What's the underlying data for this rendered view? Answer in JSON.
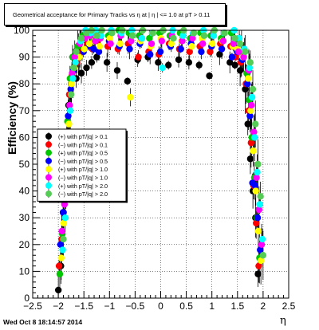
{
  "timestamp": "Wed Oct  8 18:14:57 2014",
  "chart_data": {
    "type": "scatter",
    "title": "Geometrical acceptance for Primary Tracks vs   η at | η | <= 1.0 at pT > 0.11",
    "xlabel": "η",
    "ylabel": "Efficiency (%)",
    "xlim": [
      -2.5,
      2.5
    ],
    "ylim": [
      0,
      100
    ],
    "xticks": [
      -2.5,
      -2,
      -1.5,
      -1,
      -0.5,
      0,
      0.5,
      1,
      1.5,
      2,
      2.5
    ],
    "xtick_labels": [
      "−2.5",
      "−2",
      "−1.5",
      "−1",
      "−0.5",
      "0",
      "0.5",
      "1",
      "1.5",
      "2",
      "2.5"
    ],
    "yticks": [
      0,
      10,
      20,
      30,
      40,
      50,
      60,
      70,
      80,
      90,
      100
    ],
    "ytick_labels": [
      "0",
      "10",
      "20",
      "30",
      "40",
      "50",
      "60",
      "70",
      "80",
      "90",
      "100"
    ],
    "grid": true,
    "legend_position": "middle-left",
    "series": [
      {
        "name": "(+) with pT/|q| > 0.1",
        "color": "#000000",
        "marker": "circle",
        "x": [
          -1.95,
          -1.9,
          -1.85,
          -1.8,
          -1.75,
          -1.7,
          -1.6,
          -1.5,
          -1.4,
          -1.3,
          -1.2,
          -1.0,
          -0.8,
          -0.6,
          -0.4,
          -0.2,
          0.0,
          0.2,
          0.4,
          0.6,
          0.8,
          1.0,
          1.2,
          1.4,
          1.5,
          1.6,
          1.7,
          1.75,
          1.8,
          1.85,
          1.9,
          1.95
        ],
        "y": [
          3,
          12,
          32,
          55,
          72,
          80,
          82,
          84,
          86,
          88,
          90,
          88,
          85,
          81,
          89,
          90,
          88,
          87,
          89,
          88,
          87,
          83,
          91,
          88,
          87,
          85,
          78,
          65,
          52,
          40,
          30,
          9
        ]
      },
      {
        "name": "(−) with pT/|q| > 0.1",
        "color": "#ff0000",
        "marker": "circle",
        "x": [
          -1.95,
          -1.9,
          -1.85,
          -1.8,
          -1.75,
          -1.7,
          -1.6,
          -1.5,
          -1.4,
          -1.3,
          -1.2,
          -1.0,
          -0.8,
          -0.6,
          -0.4,
          -0.2,
          0.0,
          0.2,
          0.4,
          0.6,
          0.8,
          1.0,
          1.2,
          1.4,
          1.5,
          1.6,
          1.7,
          1.75,
          1.8,
          1.85,
          1.9,
          1.95
        ],
        "y": [
          12,
          22,
          42,
          62,
          76,
          83,
          88,
          92,
          95,
          93,
          96,
          94,
          93,
          95,
          90,
          92,
          91,
          95,
          93,
          92,
          94,
          92,
          95,
          94,
          90,
          88,
          80,
          70,
          58,
          42,
          28,
          12
        ]
      },
      {
        "name": "(+) with pT/|q| > 0.5",
        "color": "#00c800",
        "marker": "circle",
        "x": [
          -1.95,
          -1.9,
          -1.85,
          -1.8,
          -1.75,
          -1.7,
          -1.6,
          -1.5,
          -1.4,
          -1.3,
          -1.2,
          -1.0,
          -0.8,
          -0.6,
          -0.4,
          -0.2,
          0.0,
          0.2,
          0.4,
          0.6,
          0.8,
          1.0,
          1.2,
          1.4,
          1.5,
          1.6,
          1.7,
          1.75,
          1.8,
          1.85,
          1.9,
          1.95
        ],
        "y": [
          9,
          24,
          45,
          66,
          82,
          90,
          94,
          98,
          99,
          97,
          99,
          98,
          100,
          99,
          98,
          97,
          99,
          98,
          99,
          97,
          99,
          98,
          97,
          99,
          96,
          92,
          84,
          74,
          60,
          45,
          30,
          15
        ]
      },
      {
        "name": "(−) with pT/|q| > 0.5",
        "color": "#0000ff",
        "marker": "circle",
        "x": [
          -1.95,
          -1.9,
          -1.85,
          -1.8,
          -1.75,
          -1.7,
          -1.6,
          -1.5,
          -1.4,
          -1.3,
          -1.2,
          -1.0,
          -0.8,
          -0.6,
          -0.4,
          -0.2,
          0.0,
          0.2,
          0.4,
          0.6,
          0.8,
          1.0,
          1.2,
          1.4,
          1.5,
          1.6,
          1.7,
          1.75,
          1.8,
          1.85,
          1.9,
          1.95
        ],
        "y": [
          20,
          32,
          52,
          68,
          78,
          85,
          90,
          92,
          94,
          93,
          92,
          96,
          94,
          93,
          95,
          91,
          92,
          94,
          93,
          95,
          92,
          94,
          93,
          90,
          92,
          89,
          80,
          68,
          43,
          42,
          30,
          18
        ]
      },
      {
        "name": "(+) with pT/|q| > 1.0",
        "color": "#ffff00",
        "marker": "circle",
        "x": [
          -1.95,
          -1.9,
          -1.85,
          -1.8,
          -1.75,
          -1.7,
          -1.6,
          -1.5,
          -1.4,
          -1.3,
          -1.2,
          -1.0,
          -0.8,
          -0.6,
          -0.4,
          -0.2,
          0.0,
          0.2,
          0.4,
          0.6,
          0.8,
          1.0,
          1.2,
          1.4,
          1.5,
          1.6,
          1.7,
          1.75,
          1.8,
          1.85,
          1.9,
          1.95
        ],
        "y": [
          15,
          28,
          48,
          65,
          80,
          86,
          90,
          93,
          95,
          96,
          94,
          97,
          95,
          75,
          96,
          94,
          97,
          95,
          96,
          94,
          97,
          95,
          96,
          94,
          93,
          90,
          82,
          70,
          55,
          40,
          25,
          14
        ]
      },
      {
        "name": "(−) with pT/|q| > 1.0",
        "color": "#ff00ff",
        "marker": "circle",
        "x": [
          -1.95,
          -1.9,
          -1.85,
          -1.8,
          -1.75,
          -1.7,
          -1.6,
          -1.5,
          -1.4,
          -1.3,
          -1.2,
          -1.0,
          -0.8,
          -0.6,
          -0.4,
          -0.2,
          0.0,
          0.2,
          0.4,
          0.6,
          0.8,
          1.0,
          1.2,
          1.4,
          1.5,
          1.6,
          1.7,
          1.75,
          1.8,
          1.85,
          1.9,
          1.95
        ],
        "y": [
          25,
          35,
          55,
          72,
          84,
          90,
          95,
          97,
          98,
          96,
          97,
          95,
          98,
          96,
          97,
          95,
          96,
          98,
          96,
          97,
          95,
          98,
          96,
          95,
          92,
          90,
          85,
          72,
          62,
          45,
          33,
          20
        ]
      },
      {
        "name": "(+) with pT/|q| > 2.0",
        "color": "#00ffff",
        "marker": "circle",
        "x": [
          -1.95,
          -1.9,
          -1.85,
          -1.8,
          -1.75,
          -1.7,
          -1.6,
          -1.5,
          -1.4,
          -1.3,
          -1.2,
          -1.0,
          -0.8,
          -0.6,
          -0.4,
          -0.2,
          0.0,
          0.2,
          0.4,
          0.6,
          0.8,
          1.0,
          1.2,
          1.4,
          1.5,
          1.6,
          1.7,
          1.75,
          1.8,
          1.85,
          1.9,
          1.95
        ],
        "y": [
          18,
          30,
          50,
          70,
          82,
          88,
          96,
          100,
          99,
          100,
          98,
          100,
          99,
          100,
          97,
          99,
          86,
          100,
          98,
          99,
          100,
          98,
          99,
          100,
          97,
          93,
          86,
          75,
          60,
          47,
          35,
          22
        ]
      },
      {
        "name": "(−) with pT/|q| > 2.0",
        "color": "#55cc55",
        "marker": "circle",
        "x": [
          -1.95,
          -1.9,
          -1.85,
          -1.8,
          -1.75,
          -1.7,
          -1.6,
          -1.5,
          -1.4,
          -1.3,
          -1.2,
          -1.0,
          -0.8,
          -0.6,
          -0.4,
          -0.2,
          0.0,
          0.2,
          0.4,
          0.6,
          0.8,
          1.0,
          1.2,
          1.4,
          1.5,
          1.6,
          1.7,
          1.75,
          1.8,
          1.85,
          1.9,
          1.95
        ],
        "y": [
          22,
          38,
          58,
          76,
          86,
          92,
          97,
          99,
          100,
          98,
          100,
          99,
          100,
          98,
          100,
          99,
          100,
          97,
          100,
          99,
          98,
          100,
          99,
          97,
          95,
          92,
          88,
          78,
          65,
          50,
          38,
          16
        ]
      }
    ]
  }
}
